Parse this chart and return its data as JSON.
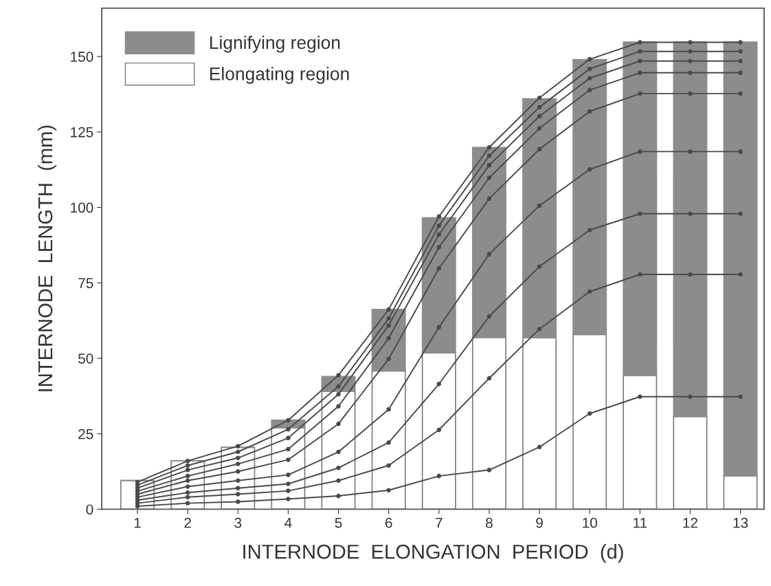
{
  "chart_data": {
    "type": "bar",
    "stacked": true,
    "xlabel": "INTERNODE  ELONGATION  PERIOD  (d)",
    "ylabel": "INTERNODE  LENGTH  (mm)",
    "categories": [
      "1",
      "2",
      "3",
      "4",
      "5",
      "6",
      "7",
      "8",
      "9",
      "10",
      "11",
      "12",
      "13"
    ],
    "ylim": [
      0,
      166
    ],
    "yticks": [
      0,
      25,
      50,
      75,
      100,
      125,
      150
    ],
    "legend": "top left",
    "grid": false,
    "series": [
      {
        "name": "Elongating region",
        "color": "#ffffff",
        "values": [
          9.5,
          16,
          20.5,
          27,
          39,
          45.8,
          51.8,
          56.9,
          56.8,
          57.9,
          44.3,
          30.7,
          11.0
        ]
      },
      {
        "name": "Lignifying region",
        "color": "#8c8c8c",
        "values": [
          0,
          0,
          0,
          2.5,
          5,
          20.4,
          44.8,
          63,
          79.2,
          91.1,
          110.5,
          124.1,
          143.8
        ]
      },
      {
        "type": "line",
        "color": "#4a4a4a",
        "marker": "circle",
        "values": [
          9,
          16,
          20.9,
          29.5,
          44.4,
          66.2,
          97,
          119.9,
          136.3,
          149.1,
          154.7,
          154.7,
          154.7
        ]
      },
      {
        "type": "line",
        "color": "#4a4a4a",
        "marker": "circle",
        "values": [
          8,
          14.5,
          19,
          26.5,
          40.7,
          63.2,
          94,
          117.1,
          133.2,
          145.9,
          151.7,
          151.7,
          151.7
        ]
      },
      {
        "type": "line",
        "color": "#4a4a4a",
        "marker": "circle",
        "values": [
          7,
          13,
          17,
          23.6,
          38.1,
          60.9,
          91,
          114,
          130.2,
          142.8,
          148.5,
          148.5,
          148.5
        ]
      },
      {
        "type": "line",
        "color": "#4a4a4a",
        "marker": "circle",
        "values": [
          6,
          11,
          15,
          19.9,
          34.1,
          56.7,
          86.8,
          109.8,
          126.2,
          138.9,
          144.6,
          144.6,
          144.6
        ]
      },
      {
        "type": "line",
        "color": "#4a4a4a",
        "marker": "circle",
        "values": [
          5,
          9.5,
          12.5,
          16.4,
          28.3,
          49.8,
          79.8,
          102.9,
          119.3,
          131.8,
          137.7,
          137.7,
          137.7
        ]
      },
      {
        "type": "line",
        "color": "#4a4a4a",
        "marker": "circle",
        "values": [
          4,
          7.5,
          9.5,
          11.4,
          19,
          33.1,
          60.3,
          84.5,
          100.6,
          112.6,
          118.5,
          118.5,
          118.5
        ]
      },
      {
        "type": "line",
        "color": "#4a4a4a",
        "marker": "circle",
        "values": [
          3,
          5.5,
          7,
          8.4,
          13.7,
          22.1,
          41.5,
          63.9,
          80.4,
          92.5,
          97.9,
          97.9,
          97.9
        ]
      },
      {
        "type": "line",
        "color": "#4a4a4a",
        "marker": "circle",
        "values": [
          2,
          4,
          5,
          6.1,
          9.5,
          14.5,
          26.3,
          43.4,
          59.7,
          72.1,
          77.8,
          77.8,
          77.8
        ]
      },
      {
        "type": "line",
        "color": "#4a4a4a",
        "marker": "circle",
        "values": [
          1,
          2,
          2.5,
          3.4,
          4.4,
          6.3,
          11,
          13,
          20.6,
          31.7,
          37.3,
          37.3,
          37.3
        ]
      }
    ]
  }
}
